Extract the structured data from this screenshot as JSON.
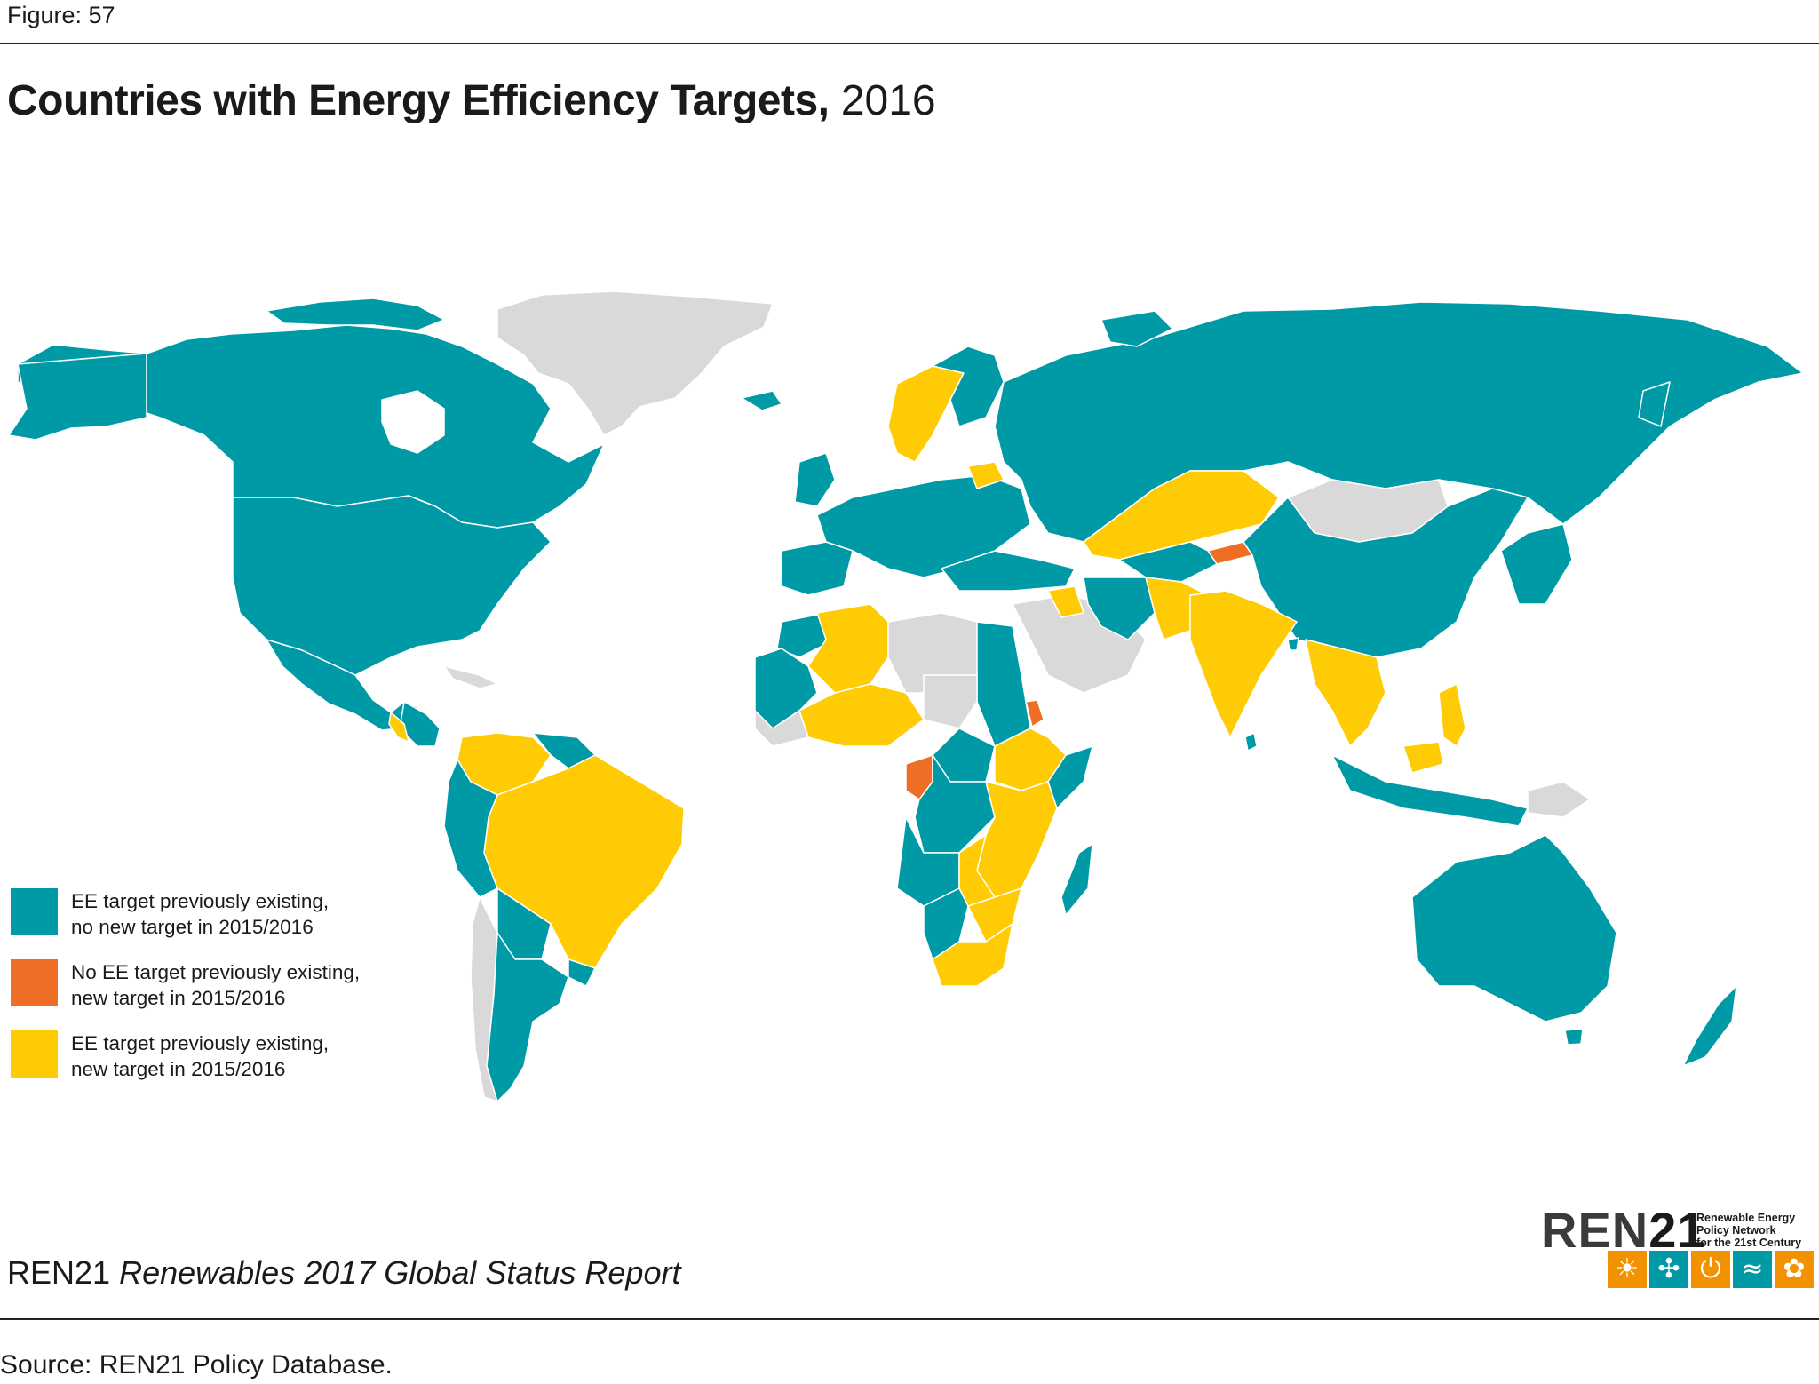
{
  "figure_label": "Figure: 57",
  "title": {
    "main": "Countries with Energy Efficiency Targets,",
    "year": "2016"
  },
  "colors": {
    "existing_no_new": "#009aa6",
    "new_target": "#ed6e24",
    "existing_new": "#ffcb05",
    "no_data": "#d9d9d9",
    "border": "#ffffff"
  },
  "legend": [
    {
      "line1": "EE target previously existing,",
      "line2": "no new target in 2015/2016",
      "color": "#009aa6"
    },
    {
      "line1": "No EE target previously existing,",
      "line2": "new target in 2015/2016",
      "color": "#ed6e24"
    },
    {
      "line1": "EE target previously existing,",
      "line2": "new target in 2015/2016",
      "color": "#ffcb05"
    }
  ],
  "logo": {
    "word_a": "REN",
    "word_b": "21",
    "tagline1": "Renewable Energy",
    "tagline2": "Policy Network",
    "tagline3": "for the 21st Century",
    "icons": [
      {
        "name": "sun-icon",
        "glyph": "☀",
        "color": "#f39200"
      },
      {
        "name": "wind-icon",
        "glyph": "✣",
        "color": "#009aa6"
      },
      {
        "name": "power-icon",
        "glyph": "⏻",
        "color": "#f39200"
      },
      {
        "name": "water-icon",
        "glyph": "≈",
        "color": "#009aa6"
      },
      {
        "name": "leaf-icon",
        "glyph": "✿",
        "color": "#f39200"
      }
    ]
  },
  "report": {
    "org": "REN21",
    "title": "Renewables 2017 Global Status Report"
  },
  "source": "Source: REN21 Policy Database."
}
